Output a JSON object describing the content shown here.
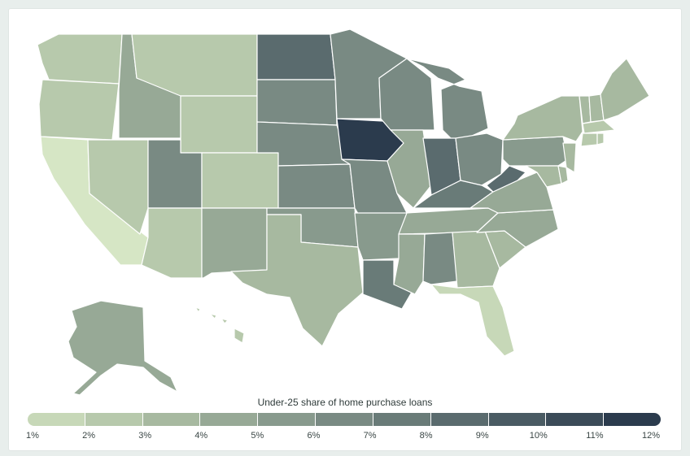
{
  "map": {
    "legend_title": "Under-25 share of home purchase loans",
    "scale_ticks": [
      "1%",
      "2%",
      "3%",
      "4%",
      "5%",
      "6%",
      "7%",
      "8%",
      "9%",
      "10%",
      "11%",
      "12%"
    ],
    "scale_colors": [
      "#d6e6c5",
      "#c7d8b8",
      "#b7c9ac",
      "#a7b9a0",
      "#97a996",
      "#889a8d",
      "#798a83",
      "#697b78",
      "#5a6b6e",
      "#4a5b63",
      "#3b4b58",
      "#2b3b4d"
    ],
    "scale_min": 1,
    "scale_max": 12
  },
  "state_values": {
    "WA": 3.0,
    "OR": 2.8,
    "CA": 1.4,
    "NV": 3.0,
    "ID": 5.0,
    "MT": 3.2,
    "WY": 3.3,
    "UT": 6.5,
    "AZ": 3.3,
    "CO": 3.2,
    "NM": 4.8,
    "ND": 8.8,
    "SD": 6.8,
    "NE": 7.0,
    "KS": 6.8,
    "OK": 5.6,
    "TX": 3.6,
    "MN": 6.8,
    "IA": 11.8,
    "MO": 6.8,
    "AR": 6.0,
    "LA": 8.3,
    "WI": 6.5,
    "IL": 5.0,
    "MI": 6.8,
    "IN": 8.8,
    "OH": 7.2,
    "KY": 7.8,
    "TN": 5.0,
    "MS": 5.0,
    "AL": 6.8,
    "GA": 4.0,
    "FL": 2.0,
    "SC": 4.3,
    "NC": 4.5,
    "VA": 4.5,
    "WV": 9.4,
    "PA": 5.8,
    "NY": 3.6,
    "VT": 3.6,
    "NH": 3.6,
    "ME": 3.6,
    "MA": 3.2,
    "CT": 3.3,
    "RI": 3.2,
    "NJ": 3.6,
    "DE": 4.2,
    "MD": 4.2,
    "AK": 4.8,
    "HI": 2.8
  }
}
